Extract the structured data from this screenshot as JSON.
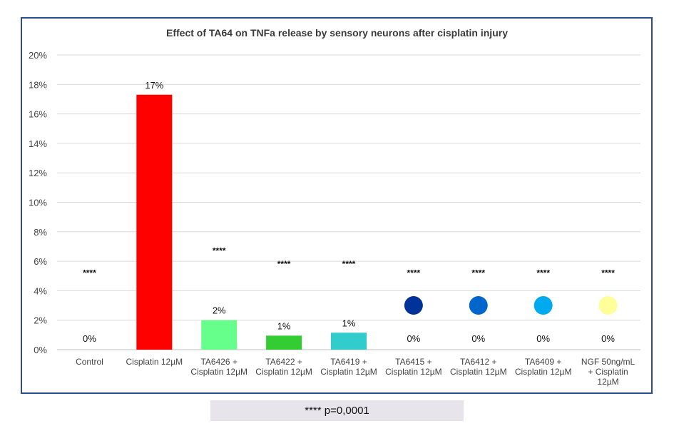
{
  "chart_data": {
    "type": "bar",
    "title": "Effect of TA64 on TNFa release by sensory neurons after cisplatin injury",
    "xlabel": "",
    "ylabel": "",
    "ylim": [
      0,
      20
    ],
    "yticks": [
      "0%",
      "2%",
      "4%",
      "6%",
      "8%",
      "10%",
      "12%",
      "14%",
      "16%",
      "18%",
      "20%"
    ],
    "grid": true,
    "categories": [
      "Control",
      "Cisplatin 12µM",
      "TA6426 + Cisplatin 12µM",
      "TA6422 + Cisplatin 12µM",
      "TA6419 + Cisplatin 12µM",
      "TA6415 + Cisplatin 12µM",
      "TA6412 + Cisplatin 12µM",
      "TA6409 + Cisplatin 12µM",
      "NGF 50ng/mL + Cisplatin 12µM"
    ],
    "category_lines": [
      [
        "Control"
      ],
      [
        "Cisplatin 12µM"
      ],
      [
        "TA6426 +",
        "Cisplatin 12µM"
      ],
      [
        "TA6422 +",
        "Cisplatin 12µM"
      ],
      [
        "TA6419 +",
        "Cisplatin 12µM"
      ],
      [
        "TA6415 +",
        "Cisplatin 12µM"
      ],
      [
        "TA6412 +",
        "Cisplatin 12µM"
      ],
      [
        "TA6409 +",
        "Cisplatin 12µM"
      ],
      [
        "NGF 50ng/mL",
        "+ Cisplatin",
        "12µM"
      ]
    ],
    "values": [
      0,
      17.3,
      2.0,
      0.95,
      1.15,
      0,
      0,
      0,
      0
    ],
    "data_labels": [
      "0%",
      "17%",
      "2%",
      "1%",
      "1%",
      "0%",
      "0%",
      "0%",
      "0%"
    ],
    "significance": [
      "****",
      "",
      "****",
      "****",
      "****",
      "****",
      "****",
      "****",
      "****"
    ],
    "significance_level": [
      5.2,
      null,
      6.7,
      5.8,
      5.8,
      5.2,
      5.2,
      5.2,
      5.2
    ],
    "colors": [
      "#ffffff",
      "#ff0000",
      "#66ff8c",
      "#33cc33",
      "#33cccc",
      "#003399",
      "#0066cc",
      "#00aaee",
      "#ffff99"
    ],
    "marker_categories": [
      5,
      6,
      7,
      8
    ],
    "marker_level": 3.0
  },
  "footnote": "**** p=0,0001"
}
